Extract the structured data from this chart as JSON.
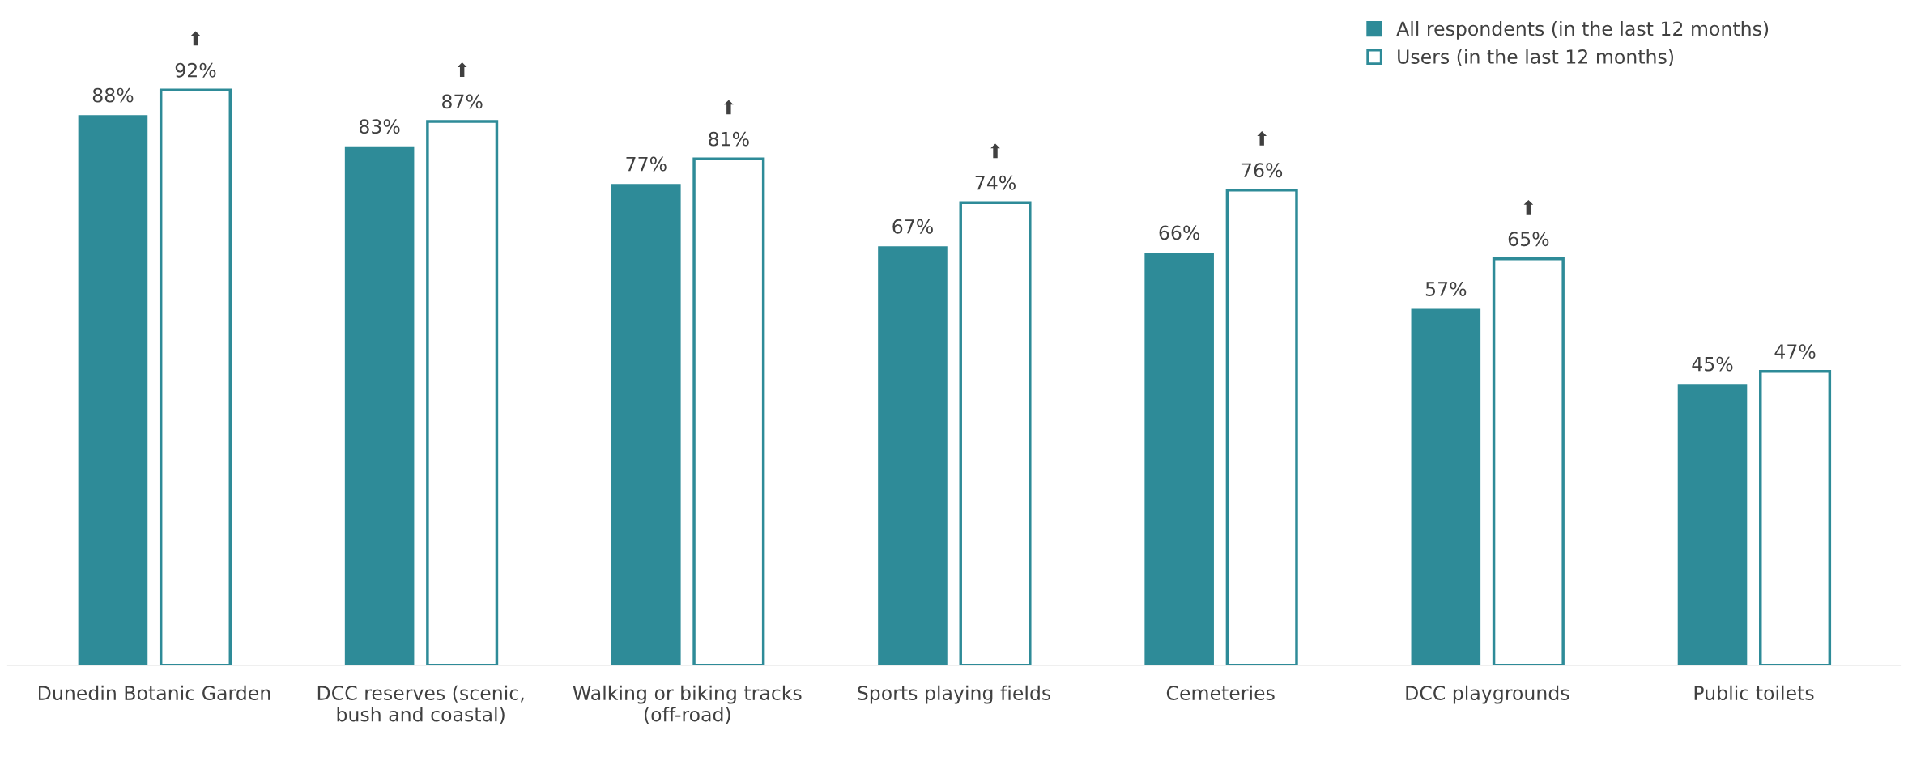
{
  "chart_data": {
    "type": "bar",
    "categories": [
      "Dunedin Botanic Garden",
      "DCC reserves (scenic,\nbush and coastal)",
      "Walking or biking tracks\n(off-road)",
      "Sports playing fields",
      "Cemeteries",
      "DCC playgrounds",
      "Public toilets"
    ],
    "series": [
      {
        "name": "All respondents (in the last 12 months)",
        "color": "#2e8b98",
        "values": [
          88,
          83,
          77,
          67,
          66,
          57,
          45
        ],
        "value_labels": [
          "88%",
          "83%",
          "77%",
          "67%",
          "66%",
          "57%",
          "45%"
        ]
      },
      {
        "name": "Users (in the last 12 months)",
        "color": "#ffffff",
        "values": [
          92,
          87,
          81,
          74,
          76,
          65,
          47
        ],
        "value_labels": [
          "⬆\n92%",
          "⬆\n87%",
          "⬆\n81%",
          "⬆\n74%",
          "⬆\n76%",
          "⬆\n65%",
          "47%"
        ]
      }
    ],
    "legend": "top right"
  }
}
